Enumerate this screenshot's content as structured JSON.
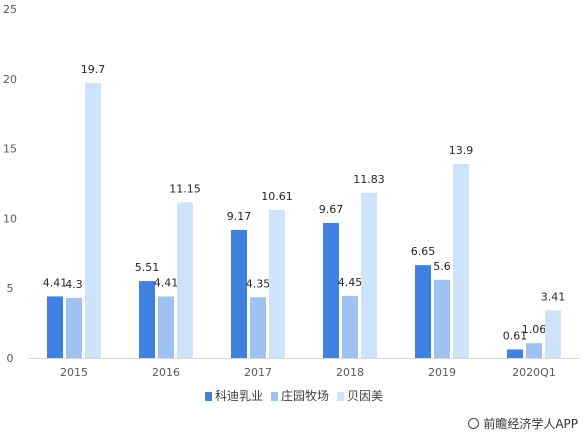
{
  "chart_data": {
    "type": "bar",
    "title": "",
    "xlabel": "",
    "ylabel": "",
    "ylim": [
      0,
      25
    ],
    "yticks": [
      0,
      5,
      10,
      15,
      20,
      25
    ],
    "grid": false,
    "legend_position": "bottom",
    "categories": [
      "2015",
      "2016",
      "2017",
      "2018",
      "2019",
      "2020Q1"
    ],
    "series": [
      {
        "name": "科迪乳业",
        "color": "#3f80e0",
        "values": [
          4.41,
          5.51,
          9.17,
          9.67,
          6.65,
          0.61
        ]
      },
      {
        "name": "庄园牧场",
        "color": "#9ec3f2",
        "values": [
          4.3,
          4.41,
          4.35,
          4.45,
          5.6,
          1.06
        ]
      },
      {
        "name": "贝因美",
        "color": "#cde3fb",
        "values": [
          19.7,
          11.15,
          10.61,
          11.83,
          13.9,
          3.41
        ]
      }
    ]
  },
  "watermark": "前瞻经济学人APP"
}
